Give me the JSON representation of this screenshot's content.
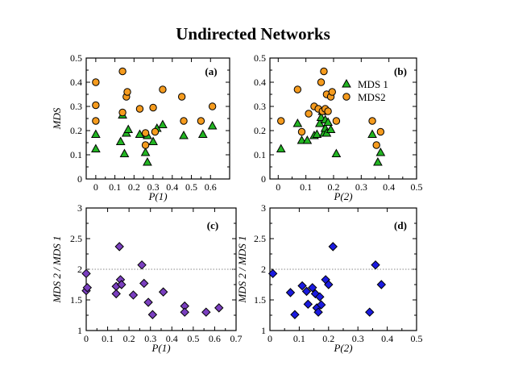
{
  "title": "Undirected Networks",
  "colors": {
    "mds1_fill": "#22b522",
    "mds2_fill": "#f59b1e",
    "purple_fill": "#7a3fbf",
    "blue_fill": "#1a1ae0",
    "ref_line": "#888888"
  },
  "chart_data": [
    {
      "panel": "(a)",
      "type": "scatter",
      "xlabel": "P(1)",
      "ylabel": "MDS",
      "xlim": [
        -0.05,
        0.7
      ],
      "ylim": [
        0,
        0.5
      ],
      "xticks": [
        "0",
        "0.1",
        "0.2",
        "0.3",
        "0.4",
        "0.5",
        "0.6"
      ],
      "xtick_values": [
        0,
        0.1,
        0.2,
        0.3,
        0.4,
        0.5,
        0.6
      ],
      "yticks": [
        "0",
        "0.1",
        "0.2",
        "0.3",
        "0.4",
        "0.5"
      ],
      "ytick_values": [
        0,
        0.1,
        0.2,
        0.3,
        0.4,
        0.5
      ],
      "series": [
        {
          "name": "MDS 1",
          "marker": "triangle",
          "x": [
            0.0,
            0.0,
            0.13,
            0.14,
            0.15,
            0.16,
            0.17,
            0.23,
            0.26,
            0.27,
            0.27,
            0.3,
            0.32,
            0.35,
            0.46,
            0.56,
            0.61
          ],
          "y": [
            0.125,
            0.185,
            0.155,
            0.265,
            0.105,
            0.19,
            0.205,
            0.185,
            0.11,
            0.07,
            0.18,
            0.155,
            0.21,
            0.225,
            0.18,
            0.185,
            0.22
          ]
        },
        {
          "name": "MDS2",
          "marker": "circle",
          "x": [
            0.0,
            0.0,
            0.0,
            0.14,
            0.14,
            0.16,
            0.165,
            0.23,
            0.26,
            0.26,
            0.3,
            0.31,
            0.35,
            0.45,
            0.46,
            0.55,
            0.61
          ],
          "y": [
            0.24,
            0.305,
            0.4,
            0.275,
            0.445,
            0.34,
            0.36,
            0.29,
            0.14,
            0.19,
            0.295,
            0.195,
            0.37,
            0.34,
            0.24,
            0.24,
            0.3
          ]
        }
      ]
    },
    {
      "panel": "(b)",
      "type": "scatter",
      "xlabel": "P(2)",
      "ylabel": "",
      "xlim": [
        -0.03,
        0.5
      ],
      "ylim": [
        0,
        0.5
      ],
      "xticks": [
        "0",
        "0.1",
        "0.2",
        "0.3",
        "0.4",
        "0.5"
      ],
      "xtick_values": [
        0,
        0.1,
        0.2,
        0.3,
        0.4,
        0.5
      ],
      "yticks": [
        "0",
        "0.1",
        "0.2",
        "0.3",
        "0.4",
        "0.5"
      ],
      "ytick_values": [
        0,
        0.1,
        0.2,
        0.3,
        0.4,
        0.5
      ],
      "legend": {
        "position": "top-right",
        "entries": [
          "MDS 1",
          "MDS2"
        ]
      },
      "series": [
        {
          "name": "MDS 1",
          "marker": "triangle",
          "x": [
            0.01,
            0.07,
            0.085,
            0.105,
            0.13,
            0.14,
            0.15,
            0.155,
            0.16,
            0.165,
            0.17,
            0.17,
            0.175,
            0.18,
            0.19,
            0.21,
            0.34,
            0.36,
            0.37
          ],
          "y": [
            0.125,
            0.23,
            0.16,
            0.16,
            0.18,
            0.185,
            0.23,
            0.255,
            0.28,
            0.19,
            0.21,
            0.245,
            0.19,
            0.235,
            0.205,
            0.105,
            0.185,
            0.07,
            0.11
          ]
        },
        {
          "name": "MDS2",
          "marker": "circle",
          "x": [
            0.01,
            0.07,
            0.085,
            0.11,
            0.13,
            0.145,
            0.155,
            0.16,
            0.165,
            0.17,
            0.175,
            0.18,
            0.19,
            0.195,
            0.21,
            0.34,
            0.355,
            0.37
          ],
          "y": [
            0.24,
            0.37,
            0.195,
            0.27,
            0.3,
            0.29,
            0.4,
            0.28,
            0.445,
            0.29,
            0.35,
            0.28,
            0.34,
            0.36,
            0.24,
            0.24,
            0.14,
            0.195
          ]
        }
      ]
    },
    {
      "panel": "(c)",
      "type": "scatter",
      "xlabel": "P(1)",
      "ylabel": "MDS 2 / MDS 1",
      "xlim": [
        0,
        0.7
      ],
      "ylim": [
        1,
        3
      ],
      "xticks": [
        "0",
        "0.1",
        "0.2",
        "0.3",
        "0.4",
        "0.5",
        "0.6",
        "0.7"
      ],
      "xtick_values": [
        0,
        0.1,
        0.2,
        0.3,
        0.4,
        0.5,
        0.6,
        0.7
      ],
      "yticks": [
        "1",
        "1.5",
        "2",
        "2.5",
        "3"
      ],
      "ytick_values": [
        1,
        1.5,
        2,
        2.5,
        3
      ],
      "reference_line": 2.0,
      "series": [
        {
          "name": "MDS 2 / MDS 1",
          "marker": "diamond",
          "x": [
            0.0,
            0.0,
            0.005,
            0.14,
            0.14,
            0.155,
            0.16,
            0.165,
            0.22,
            0.26,
            0.27,
            0.29,
            0.31,
            0.36,
            0.46,
            0.46,
            0.56,
            0.62
          ],
          "y": [
            1.93,
            1.65,
            1.7,
            1.72,
            1.6,
            2.37,
            1.83,
            1.75,
            1.58,
            2.07,
            1.77,
            1.46,
            1.26,
            1.63,
            1.4,
            1.3,
            1.3,
            1.37
          ]
        }
      ]
    },
    {
      "panel": "(d)",
      "type": "scatter",
      "xlabel": "P(2)",
      "ylabel": "MDS 2 / MDS 1",
      "xlim": [
        0,
        0.5
      ],
      "ylim": [
        1,
        3
      ],
      "xticks": [
        "0",
        "0.1",
        "0.2",
        "0.3",
        "0.4",
        "0.5"
      ],
      "xtick_values": [
        0,
        0.1,
        0.2,
        0.3,
        0.4,
        0.5
      ],
      "yticks": [
        "1",
        "1.5",
        "2",
        "2.5",
        "3"
      ],
      "ytick_values": [
        1,
        1.5,
        2,
        2.5,
        3
      ],
      "reference_line": 2.0,
      "series": [
        {
          "name": "MDS 2 / MDS 1",
          "marker": "diamond",
          "x": [
            0.01,
            0.07,
            0.085,
            0.11,
            0.125,
            0.13,
            0.145,
            0.155,
            0.16,
            0.165,
            0.17,
            0.175,
            0.19,
            0.2,
            0.215,
            0.34,
            0.36,
            0.38
          ],
          "y": [
            1.93,
            1.62,
            1.26,
            1.73,
            1.64,
            1.43,
            1.7,
            1.6,
            1.37,
            1.3,
            1.55,
            1.42,
            1.83,
            1.75,
            2.37,
            1.3,
            2.07,
            1.75
          ]
        }
      ]
    }
  ]
}
